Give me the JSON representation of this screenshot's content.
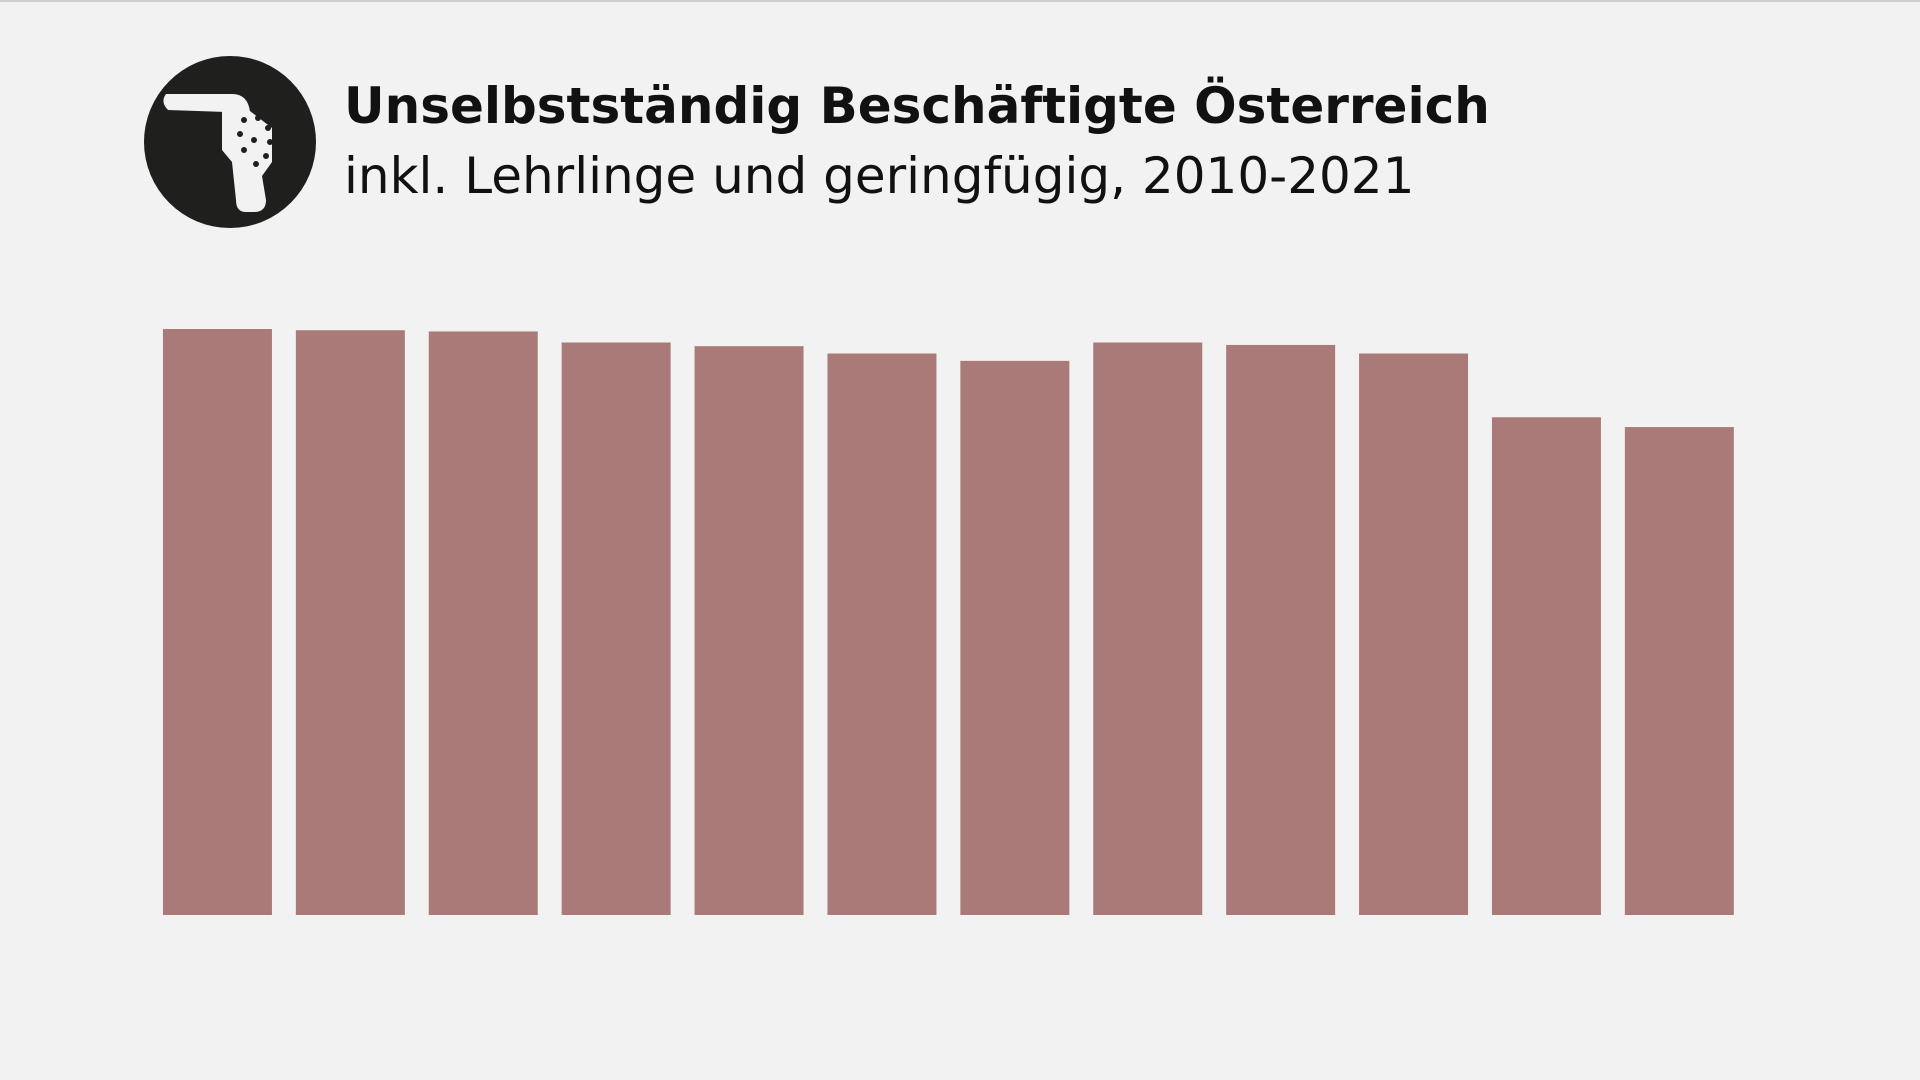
{
  "chart_data": {
    "type": "bar",
    "title": "Unselbstständig Beschäftigte Österreich",
    "subtitle": "inkl. Lehrlinge und geringfügig, 2010-2021",
    "categories": [
      null,
      null,
      null,
      null,
      null,
      null,
      null,
      null,
      null,
      null,
      null,
      null
    ],
    "values": [
      478,
      477,
      476,
      467,
      464,
      458,
      452,
      467,
      465,
      458,
      406,
      398
    ],
    "color": "#a97a77",
    "ylim": [
      0,
      478
    ]
  }
}
